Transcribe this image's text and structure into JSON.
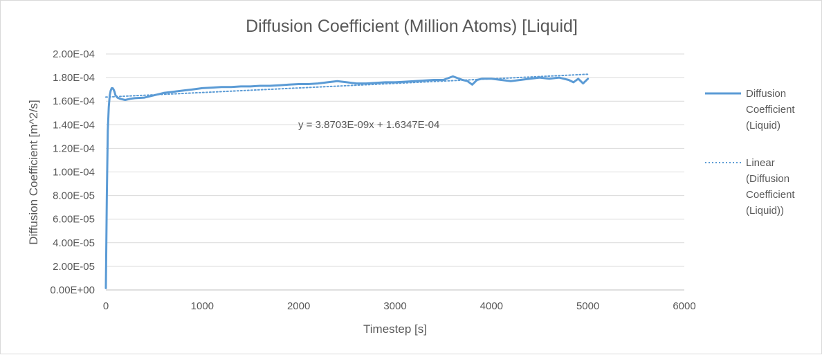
{
  "chart_data": {
    "type": "line",
    "title": "Diffusion Coefficient (Million Atoms) [Liquid]",
    "xlabel": "Timestep [s]",
    "ylabel": "Diffusion Coefficient [m^2/s]",
    "xlim": [
      0,
      6000
    ],
    "ylim": [
      0,
      0.0002
    ],
    "x_ticks": [
      "0",
      "1000",
      "2000",
      "3000",
      "4000",
      "5000",
      "6000"
    ],
    "y_ticks": [
      "0.00E+00",
      "2.00E-05",
      "4.00E-05",
      "6.00E-05",
      "8.00E-05",
      "1.00E-04",
      "1.20E-04",
      "1.40E-04",
      "1.60E-04",
      "1.80E-04",
      "2.00E-04"
    ],
    "grid": "horizontal",
    "legend_position": "right",
    "colors": {
      "series": "#5b9bd5",
      "text": "#595959",
      "grid": "#d9d9d9"
    },
    "series": [
      {
        "name": "Diffusion Coefficient (Liquid)",
        "legend_lines": [
          "Diffusion",
          "Coefficient",
          "(Liquid)"
        ],
        "style": "solid",
        "x": [
          0,
          10,
          20,
          30,
          40,
          50,
          60,
          70,
          80,
          90,
          100,
          120,
          150,
          200,
          250,
          300,
          400,
          500,
          600,
          700,
          800,
          900,
          1000,
          1100,
          1200,
          1300,
          1400,
          1500,
          1600,
          1700,
          1800,
          1900,
          2000,
          2100,
          2200,
          2300,
          2400,
          2500,
          2600,
          2700,
          2800,
          2900,
          3000,
          3100,
          3200,
          3300,
          3400,
          3500,
          3600,
          3700,
          3750,
          3800,
          3850,
          3900,
          4000,
          4100,
          4200,
          4300,
          4400,
          4500,
          4600,
          4700,
          4800,
          4850,
          4900,
          4950,
          5000
        ],
        "y": [
          1.5e-06,
          8e-05,
          0.000135,
          0.000155,
          0.000165,
          0.000169,
          0.000171,
          0.000171,
          0.00017,
          0.000168,
          0.000165,
          0.000163,
          0.000162,
          0.000161,
          0.000162,
          0.0001625,
          0.000163,
          0.000165,
          0.000167,
          0.000168,
          0.000169,
          0.00017,
          0.000171,
          0.0001715,
          0.000172,
          0.000172,
          0.0001725,
          0.0001725,
          0.000173,
          0.000173,
          0.0001735,
          0.000174,
          0.0001745,
          0.0001745,
          0.000175,
          0.000176,
          0.000177,
          0.000176,
          0.000175,
          0.000175,
          0.0001755,
          0.000176,
          0.000176,
          0.0001765,
          0.000177,
          0.0001775,
          0.000178,
          0.000178,
          0.000181,
          0.000178,
          0.000177,
          0.000174,
          0.000178,
          0.000179,
          0.000179,
          0.000178,
          0.000177,
          0.000178,
          0.000179,
          0.00018,
          0.000179,
          0.00018,
          0.000178,
          0.000176,
          0.000179,
          0.000175,
          0.000179
        ]
      },
      {
        "name": "Linear (Diffusion Coefficient (Liquid))",
        "legend_lines": [
          "Linear",
          "(Diffusion",
          "Coefficient",
          "(Liquid))"
        ],
        "style": "dotted",
        "x": [
          0,
          5000
        ],
        "y": [
          0.00016347,
          0.000182822
        ]
      }
    ],
    "annotations": [
      {
        "text": "y = 3.8703E-09x + 1.6347E-04"
      }
    ]
  }
}
